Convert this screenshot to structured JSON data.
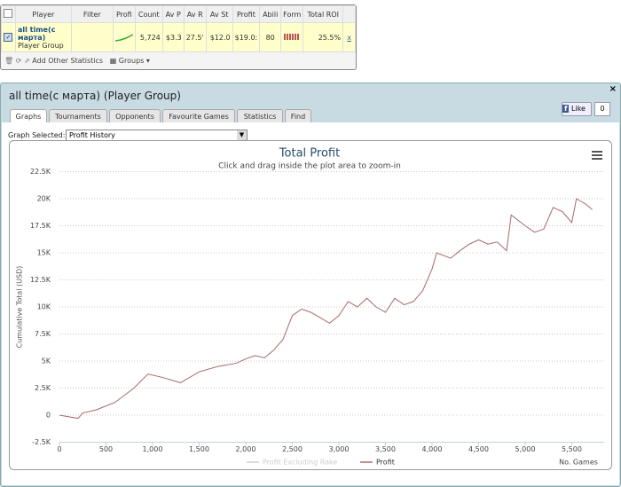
{
  "stats_table": {
    "headers": [
      "Player",
      "Filter",
      "Profi",
      "Count",
      "Av P",
      "Av R",
      "Av St",
      "Profit",
      "Abili",
      "Form",
      "Total ROI"
    ],
    "row": {
      "player": "all time(с марта)",
      "player_type": "Player Group",
      "count": "5,724",
      "av_p": "$3.3",
      "av_r": "27.5'",
      "av_st": "$12.0",
      "profit": "$19.0:",
      "ability": "80",
      "total_roi": "25.5%",
      "remove": "x"
    },
    "footer": {
      "add": "Add Other Statistics",
      "groups": "Groups"
    }
  },
  "panel": {
    "title": "all time(с марта) (Player Group)",
    "tabs": [
      "Graphs",
      "Tournaments",
      "Opponents",
      "Favourite Games",
      "Statistics",
      "Find"
    ],
    "like": {
      "label": "Like",
      "count": "0"
    },
    "graph_selected_label": "Graph Selected:",
    "graph_selected": "Profit History"
  },
  "chart_data": {
    "type": "line",
    "title": "Total Profit",
    "subtitle": "Click and drag inside the plot area to zoom-in",
    "y_label": "Cumulative Total (USD)",
    "x_label": "No. Games",
    "x": [
      0,
      200,
      250,
      400,
      600,
      800,
      950,
      1100,
      1300,
      1500,
      1700,
      1900,
      2000,
      2100,
      2200,
      2300,
      2400,
      2500,
      2600,
      2700,
      2800,
      2900,
      3000,
      3100,
      3200,
      3300,
      3400,
      3500,
      3600,
      3700,
      3800,
      3900,
      4000,
      4050,
      4200,
      4300,
      4400,
      4500,
      4600,
      4700,
      4800,
      4850,
      5000,
      5100,
      5200,
      5300,
      5400,
      5500,
      5550,
      5650,
      5720
    ],
    "series": [
      {
        "name": "Profit",
        "color": "#a86a6a",
        "values": [
          0,
          -300,
          200,
          500,
          1200,
          2500,
          3800,
          3500,
          3000,
          4000,
          4500,
          4800,
          5200,
          5500,
          5300,
          6000,
          7000,
          9200,
          9800,
          9500,
          9000,
          8500,
          9200,
          10500,
          10000,
          10800,
          10000,
          9500,
          10800,
          10200,
          10500,
          11500,
          13500,
          15000,
          14500,
          15200,
          15800,
          16200,
          15800,
          16000,
          15200,
          18500,
          17500,
          16900,
          17200,
          19200,
          18800,
          17800,
          20000,
          19500,
          19000
        ]
      }
    ],
    "hidden_series": [
      {
        "name": "Profit Excluding Rake",
        "color": "#cccccc"
      }
    ],
    "xlim": [
      0,
      5850
    ],
    "xticks": [
      0,
      500,
      {
        "value": 1000,
        "label": "1,000"
      },
      {
        "value": 1500,
        "label": "1,500"
      },
      {
        "value": 2000,
        "label": "2,000"
      },
      {
        "value": 2500,
        "label": "2,500"
      },
      {
        "value": 3000,
        "label": "3,000"
      },
      {
        "value": 3500,
        "label": "3,500"
      },
      {
        "value": 4000,
        "label": "4,000"
      },
      {
        "value": 4500,
        "label": "4,500"
      },
      {
        "value": 5000,
        "label": "5,000"
      },
      {
        "value": 5500,
        "label": "5,500"
      }
    ],
    "ylim": [
      -2500,
      22500
    ],
    "yticks": [
      {
        "value": -2500,
        "label": "-2.5K"
      },
      0,
      {
        "value": 2500,
        "label": "2.5K"
      },
      {
        "value": 5000,
        "label": "5K"
      },
      {
        "value": 7500,
        "label": "7.5K"
      },
      {
        "value": 10000,
        "label": "10K"
      },
      {
        "value": 12500,
        "label": "12.5K"
      },
      {
        "value": 15000,
        "label": "15K"
      },
      {
        "value": 17500,
        "label": "17.5K"
      },
      {
        "value": 20000,
        "label": "20K"
      },
      {
        "value": 22500,
        "label": "22.5K"
      }
    ],
    "grid": true
  }
}
